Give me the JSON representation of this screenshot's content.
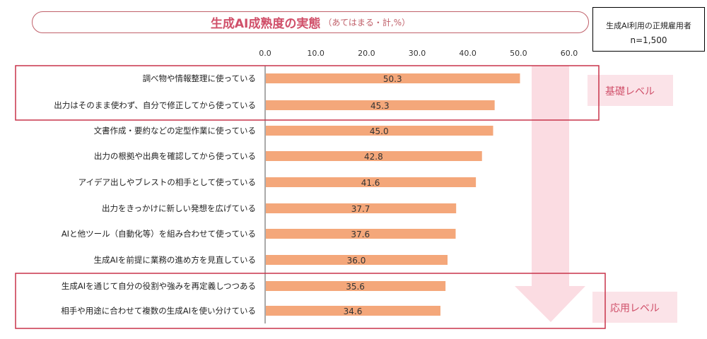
{
  "chart_data": {
    "type": "bar",
    "orientation": "horizontal",
    "title": "生成AI成熟度の実態",
    "subtitle": "（あてはまる・計,%）",
    "categories": [
      "調べ物や情報整理に使っている",
      "出力はそのまま使わず、自分で修正してから使っている",
      "文書作成・要約などの定型作業に使っている",
      "出力の根拠や出典を確認してから使っている",
      "アイデア出しやブレストの相手として使っている",
      "出力をきっかけに新しい発想を広げている",
      "AIと他ツール（自動化等）を組み合わせて使っている",
      "生成AIを前提に業務の進め方を見直している",
      "生成AIを通じて自分の役割や強みを再定義しつつある",
      "相手や用途に合わせて複数の生成AIを使い分けている"
    ],
    "values": [
      50.3,
      45.3,
      45.0,
      42.8,
      41.6,
      37.7,
      37.6,
      36.0,
      35.6,
      34.6
    ],
    "value_labels": [
      "50.3",
      "45.3",
      "45.0",
      "42.8",
      "41.6",
      "37.7",
      "37.6",
      "36.0",
      "35.6",
      "34.6"
    ],
    "xlim": [
      0,
      60
    ],
    "xticks": [
      "0.0",
      "10.0",
      "20.0",
      "30.0",
      "40.0",
      "50.0",
      "60.0"
    ],
    "xtick_values": [
      0,
      10,
      20,
      30,
      40,
      50,
      60
    ],
    "grid": false,
    "colors": {
      "bar": "#f4a77a",
      "accent": "#d0506a",
      "box": "#c8344a",
      "arrow": "#f9d0d8"
    },
    "annotations": {
      "basic_level": "基礎レベル",
      "applied_level": "応用レベル",
      "basic_group": [
        0,
        1
      ],
      "applied_group": [
        8,
        9
      ]
    }
  },
  "sample": {
    "label": "生成AI利用の正規雇用者",
    "n": "n=1,500"
  }
}
